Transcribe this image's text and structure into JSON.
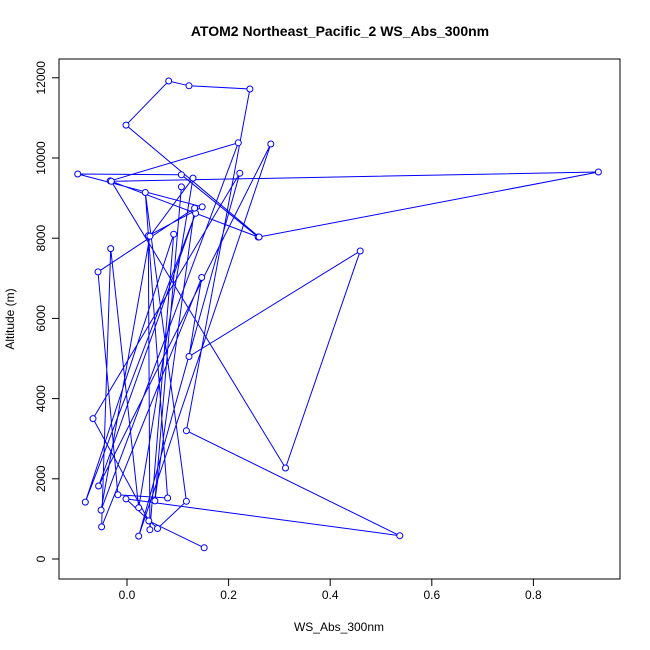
{
  "chart_data": {
    "type": "line",
    "title": "ATOM2 Northeast_Pacific_2 WS_Abs_300nm",
    "xlabel": "WS_Abs_300nm",
    "ylabel": "Altitude (m)",
    "xlim": [
      -0.1,
      0.93
    ],
    "ylim": [
      0,
      12000
    ],
    "x_ticks": [
      0.0,
      0.2,
      0.4,
      0.6,
      0.8
    ],
    "x_tick_labels": [
      "0.0",
      "0.2",
      "0.4",
      "0.6",
      "0.8"
    ],
    "y_ticks": [
      0,
      2000,
      4000,
      6000,
      8000,
      10000,
      12000
    ],
    "y_tick_labels": [
      "0",
      "2000",
      "4000",
      "6000",
      "8000",
      "10000",
      "12000"
    ],
    "grid": false,
    "legend": "none",
    "series_color": "#0000ff",
    "marker": "open-circle",
    "points": [
      {
        "x": 0.152,
        "y": 280
      },
      {
        "x": 0.043,
        "y": 950
      },
      {
        "x": -0.067,
        "y": 3500
      },
      {
        "x": 0.222,
        "y": 9620
      },
      {
        "x": 0.023,
        "y": 570
      },
      {
        "x": 0.283,
        "y": 10350
      },
      {
        "x": -0.056,
        "y": 1820
      },
      {
        "x": 0.135,
        "y": 8620
      },
      {
        "x": -0.082,
        "y": 1420
      },
      {
        "x": 0.092,
        "y": 8100
      },
      {
        "x": 0.045,
        "y": 730
      },
      {
        "x": 0.042,
        "y": 8060
      },
      {
        "x": 0.148,
        "y": 8780
      },
      {
        "x": -0.097,
        "y": 9600
      },
      {
        "x": 0.107,
        "y": 9580
      },
      {
        "x": 0.258,
        "y": 8030
      },
      {
        "x": -0.033,
        "y": 9430
      },
      {
        "x": 0.219,
        "y": 10380
      },
      {
        "x": -0.051,
        "y": 1220
      },
      {
        "x": 0.045,
        "y": 8050
      },
      {
        "x": 0.13,
        "y": 9500
      },
      {
        "x": 0.023,
        "y": 1280
      },
      {
        "x": -0.032,
        "y": 7740
      },
      {
        "x": -0.05,
        "y": 800
      },
      {
        "x": 0.147,
        "y": 7020
      },
      {
        "x": 0.122,
        "y": 5050
      },
      {
        "x": 0.459,
        "y": 7680
      },
      {
        "x": 0.312,
        "y": 2270
      },
      {
        "x": -0.031,
        "y": 9420
      },
      {
        "x": 0.928,
        "y": 9650
      },
      {
        "x": 0.26,
        "y": 8030
      },
      {
        "x": -0.002,
        "y": 10820
      },
      {
        "x": 0.082,
        "y": 11920
      },
      {
        "x": 0.122,
        "y": 11800
      },
      {
        "x": 0.242,
        "y": 11720
      },
      {
        "x": 0.117,
        "y": 3200
      },
      {
        "x": 0.537,
        "y": 580
      },
      {
        "x": -0.002,
        "y": 1500
      },
      {
        "x": 0.06,
        "y": 760
      },
      {
        "x": 0.117,
        "y": 1440
      },
      {
        "x": 0.036,
        "y": 9140
      },
      {
        "x": 0.08,
        "y": 1520
      },
      {
        "x": -0.018,
        "y": 1600
      },
      {
        "x": -0.057,
        "y": 7160
      },
      {
        "x": 0.133,
        "y": 8750
      },
      {
        "x": 0.055,
        "y": 1450
      },
      {
        "x": 0.107,
        "y": 9280
      }
    ]
  }
}
